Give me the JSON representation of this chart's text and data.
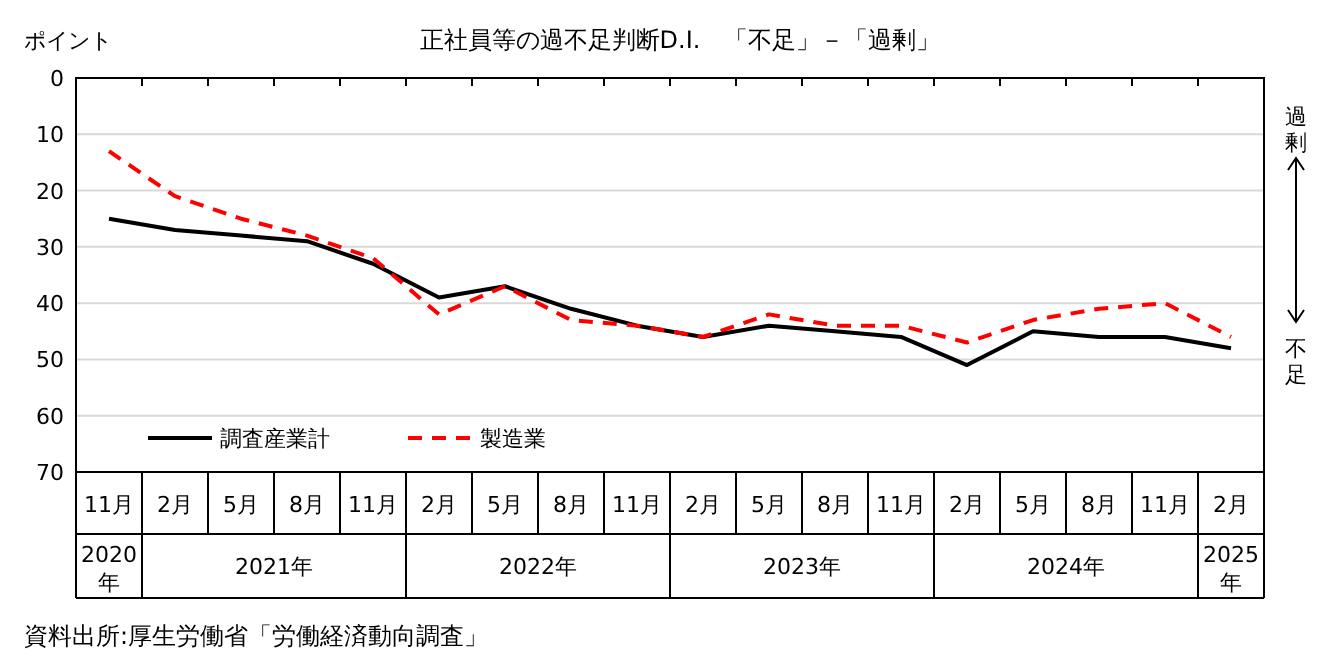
{
  "chart_data": {
    "type": "line",
    "title": "正社員等の過不足判断D.I.　「不足」－「過剰」",
    "ylabel": "ポイント",
    "categories": [
      "11月",
      "2月",
      "5月",
      "8月",
      "11月",
      "2月",
      "5月",
      "8月",
      "11月",
      "2月",
      "5月",
      "8月",
      "11月",
      "2月",
      "5月",
      "8月",
      "11月",
      "2月"
    ],
    "series": [
      {
        "name": "調査産業計",
        "color": "#000000",
        "line_style": "solid",
        "values": [
          25,
          27,
          28,
          29,
          33,
          39,
          37,
          41,
          44,
          46,
          44,
          45,
          46,
          51,
          45,
          46,
          46,
          48
        ]
      },
      {
        "name": "製造業",
        "color": "#ff0000",
        "line_style": "dashed",
        "values": [
          13,
          21,
          25,
          28,
          32,
          42,
          37,
          43,
          44,
          46,
          42,
          44,
          44,
          47,
          43,
          41,
          40,
          46
        ]
      }
    ],
    "ylim": [
      70,
      0
    ],
    "yticks": [
      0,
      10,
      20,
      30,
      40,
      50,
      60,
      70
    ],
    "grid": "y",
    "legend": "bottom left",
    "marker": "none",
    "annotations": [
      "2020年",
      "2021年",
      "2022年",
      "2023年",
      "2024年",
      "2025年",
      "過剰",
      "不足",
      "資料出所:厚生労働省「労働経済動向調査」"
    ]
  }
}
